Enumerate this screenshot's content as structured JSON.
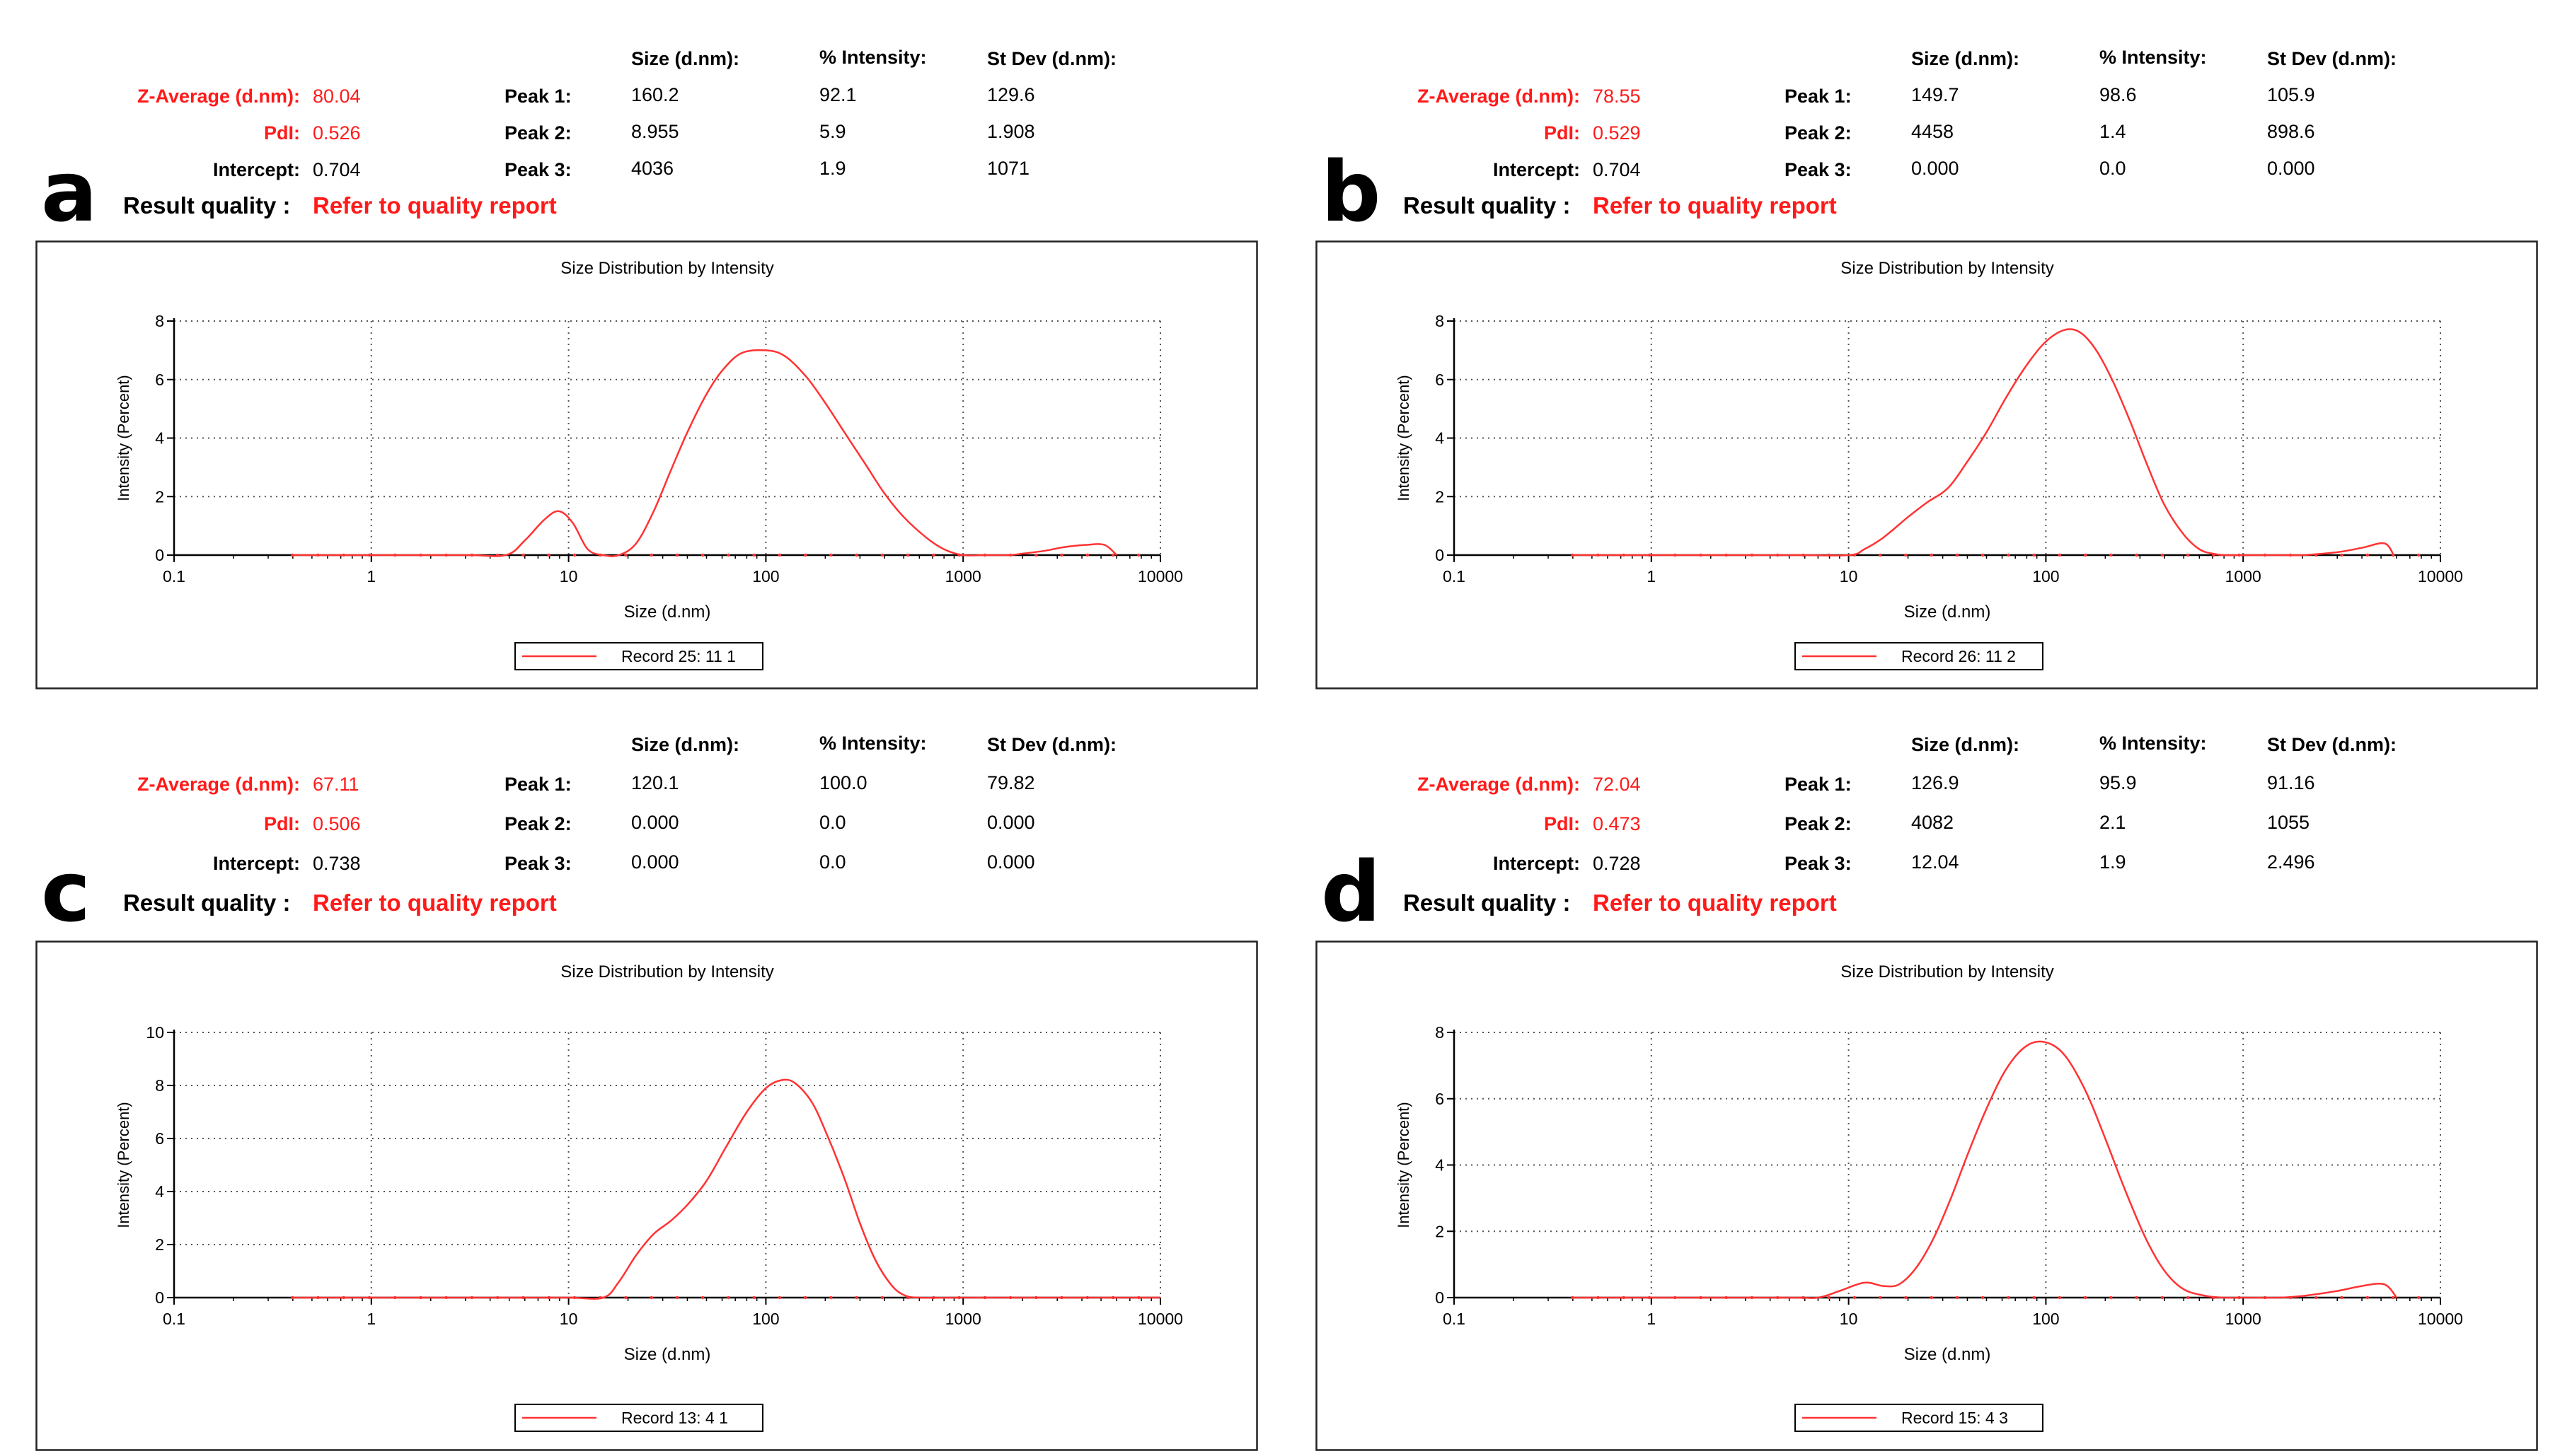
{
  "figure": {
    "labels": {
      "size": "Size (d.nm):",
      "intensity": "% Intensity:",
      "stdev": "St Dev (d.nm):",
      "zavg": "Z-Average (d.nm):",
      "pdi": "PdI:",
      "intercept": "Intercept:",
      "quality": "Result quality :",
      "quality_value": "Refer to quality report",
      "peak1": "Peak 1:",
      "peak2": "Peak 2:",
      "peak3": "Peak 3:"
    },
    "colors": {
      "accent_red": "#ff1a1a",
      "curve": "#ff3333",
      "grid": "#555555"
    },
    "panels": [
      {
        "letter": "a",
        "zavg": "80.04",
        "pdi": "0.526",
        "intercept": "0.704",
        "peaks": [
          {
            "size": "160.2",
            "intensity": "92.1",
            "stdev": "129.6"
          },
          {
            "size": "8.955",
            "intensity": "5.9",
            "stdev": "1.908"
          },
          {
            "size": "4036",
            "intensity": "1.9",
            "stdev": "1071"
          }
        ]
      },
      {
        "letter": "b",
        "zavg": "78.55",
        "pdi": "0.529",
        "intercept": "0.704",
        "peaks": [
          {
            "size": "149.7",
            "intensity": "98.6",
            "stdev": "105.9"
          },
          {
            "size": "4458",
            "intensity": "1.4",
            "stdev": "898.6"
          },
          {
            "size": "0.000",
            "intensity": "0.0",
            "stdev": "0.000"
          }
        ]
      },
      {
        "letter": "c",
        "zavg": "67.11",
        "pdi": "0.506",
        "intercept": "0.738",
        "peaks": [
          {
            "size": "120.1",
            "intensity": "100.0",
            "stdev": "79.82"
          },
          {
            "size": "0.000",
            "intensity": "0.0",
            "stdev": "0.000"
          },
          {
            "size": "0.000",
            "intensity": "0.0",
            "stdev": "0.000"
          }
        ]
      },
      {
        "letter": "d",
        "zavg": "72.04",
        "pdi": "0.473",
        "intercept": "0.728",
        "peaks": [
          {
            "size": "126.9",
            "intensity": "95.9",
            "stdev": "91.16"
          },
          {
            "size": "4082",
            "intensity": "2.1",
            "stdev": "1055"
          },
          {
            "size": "12.04",
            "intensity": "1.9",
            "stdev": "2.496"
          }
        ]
      }
    ]
  },
  "chart_data": [
    {
      "type": "line",
      "title": "Size Distribution by Intensity",
      "xlabel": "Size (d.nm)",
      "ylabel": "Intensity (Percent)",
      "xscale": "log",
      "xlim": [
        0.1,
        10000
      ],
      "ylim": [
        0,
        8
      ],
      "xticks": [
        "0.1",
        "1",
        "10",
        "100",
        "1000",
        "10000"
      ],
      "yticks": [
        "0",
        "2",
        "4",
        "6",
        "8"
      ],
      "legend": "Record 25: 11 1",
      "grid": true,
      "series": [
        {
          "name": "Record 25: 11 1",
          "x": [
            0.4,
            1,
            3,
            4.8,
            6,
            7.5,
            8.9,
            10.5,
            12.5,
            15,
            18,
            22,
            27,
            33,
            40,
            50,
            60,
            75,
            100,
            125,
            160,
            200,
            250,
            320,
            400,
            500,
            650,
            800,
            1000,
            1300,
            1700,
            2000,
            2600,
            3300,
            4200,
            5200,
            6000
          ],
          "y": [
            0,
            0,
            0,
            0,
            0.5,
            1.2,
            1.5,
            1.1,
            0.2,
            0,
            0,
            0.4,
            1.5,
            2.9,
            4.2,
            5.5,
            6.3,
            6.9,
            7.0,
            6.8,
            6.1,
            5.2,
            4.2,
            3.1,
            2.1,
            1.3,
            0.6,
            0.2,
            0,
            0,
            0,
            0.05,
            0.15,
            0.28,
            0.35,
            0.35,
            0
          ]
        }
      ]
    },
    {
      "type": "line",
      "title": "Size Distribution by Intensity",
      "xlabel": "Size (d.nm)",
      "ylabel": "Intensity (Percent)",
      "xscale": "log",
      "xlim": [
        0.1,
        10000
      ],
      "ylim": [
        0,
        8
      ],
      "xticks": [
        "0.1",
        "1",
        "10",
        "100",
        "1000",
        "10000"
      ],
      "yticks": [
        "0",
        "2",
        "4",
        "6",
        "8"
      ],
      "legend": "Record 26: 11 2",
      "grid": true,
      "series": [
        {
          "name": "Record 26: 11 2",
          "x": [
            0.4,
            1,
            5,
            10,
            12,
            15,
            20,
            25,
            32,
            40,
            50,
            63,
            80,
            100,
            125,
            150,
            180,
            220,
            270,
            330,
            400,
            500,
            600,
            700,
            800,
            1000,
            1500,
            2000,
            3000,
            4000,
            5200,
            5800
          ],
          "y": [
            0,
            0,
            0,
            0,
            0.2,
            0.6,
            1.3,
            1.8,
            2.3,
            3.2,
            4.2,
            5.4,
            6.5,
            7.3,
            7.7,
            7.6,
            7.0,
            5.9,
            4.5,
            3.0,
            1.7,
            0.7,
            0.2,
            0.05,
            0,
            0,
            0,
            0,
            0.1,
            0.25,
            0.4,
            0
          ]
        }
      ]
    },
    {
      "type": "line",
      "title": "Size Distribution by Intensity",
      "xlabel": "Size (d.nm)",
      "ylabel": "Intensity (Percent)",
      "xscale": "log",
      "xlim": [
        0.1,
        10000
      ],
      "ylim": [
        0,
        10
      ],
      "xticks": [
        "0.1",
        "1",
        "10",
        "100",
        "1000",
        "10000"
      ],
      "yticks": [
        "0",
        "2",
        "4",
        "6",
        "8",
        "10"
      ],
      "legend": "Record 13: 4 1",
      "grid": true,
      "series": [
        {
          "name": "Record 13: 4 1",
          "x": [
            0.4,
            1,
            5,
            10,
            15,
            18,
            22,
            27,
            33,
            40,
            50,
            63,
            80,
            100,
            120,
            140,
            170,
            200,
            250,
            300,
            360,
            430,
            500,
            600,
            1000,
            5000,
            10000
          ],
          "y": [
            0,
            0,
            0,
            0,
            0,
            0.6,
            1.6,
            2.4,
            2.9,
            3.5,
            4.4,
            5.7,
            7.0,
            7.9,
            8.2,
            8.1,
            7.4,
            6.3,
            4.5,
            2.8,
            1.4,
            0.5,
            0.1,
            0,
            0,
            0,
            0
          ]
        }
      ]
    },
    {
      "type": "line",
      "title": "Size Distribution by Intensity",
      "xlabel": "Size (d.nm)",
      "ylabel": "Intensity (Percent)",
      "xscale": "log",
      "xlim": [
        0.1,
        10000
      ],
      "ylim": [
        0,
        8
      ],
      "xticks": [
        "0.1",
        "1",
        "10",
        "100",
        "1000",
        "10000"
      ],
      "yticks": [
        "0",
        "2",
        "4",
        "6",
        "8"
      ],
      "legend": "Record 15: 4 3",
      "grid": true,
      "series": [
        {
          "name": "Record 15: 4 3",
          "x": [
            0.4,
            1,
            5,
            7,
            9,
            12,
            15,
            18,
            22,
            27,
            33,
            40,
            50,
            63,
            80,
            100,
            125,
            160,
            200,
            250,
            320,
            400,
            500,
            650,
            800,
            1000,
            1500,
            2000,
            3000,
            4000,
            5200,
            6000
          ],
          "y": [
            0,
            0,
            0,
            0,
            0.2,
            0.45,
            0.35,
            0.4,
            0.9,
            1.8,
            3.0,
            4.3,
            5.7,
            6.9,
            7.6,
            7.7,
            7.3,
            6.2,
            4.8,
            3.3,
            1.8,
            0.8,
            0.25,
            0.05,
            0,
            0,
            0,
            0.05,
            0.2,
            0.35,
            0.4,
            0
          ]
        }
      ]
    }
  ]
}
